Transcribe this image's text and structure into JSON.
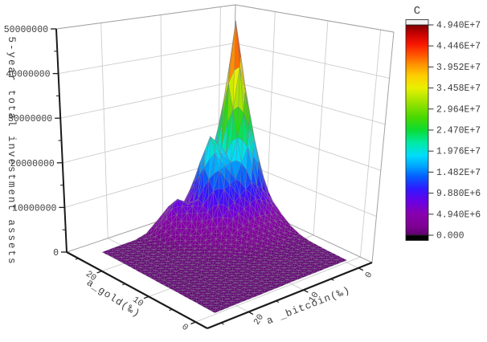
{
  "page": {
    "background": "#ffffff"
  },
  "chart_data": {
    "type": "surface3d",
    "title": "",
    "zlabel": "5-year total investment assets",
    "xlabel": "a_gold(‰)",
    "ylabel": "a _bitcoin(‰)",
    "z_axis": {
      "min": 0,
      "max": 50000000,
      "tick_values": [
        0,
        10000000,
        20000000,
        30000000,
        40000000,
        50000000
      ],
      "tick_labels": [
        "0",
        "10000000",
        "20000000",
        "30000000",
        "40000000",
        "50000000"
      ],
      "minor_values": [
        5000000,
        15000000,
        25000000,
        35000000,
        45000000
      ]
    },
    "gold_axis": {
      "range": [
        -2.5,
        27.5
      ],
      "tick_values": [
        0,
        10,
        20
      ],
      "tick_labels": [
        "0",
        "10",
        "20"
      ],
      "minor_values": [
        5,
        15,
        25
      ]
    },
    "bitcoin_axis": {
      "range": [
        -2.5,
        27.5
      ],
      "tick_values": [
        0,
        10,
        20
      ],
      "tick_labels": [
        "0",
        "10",
        "20"
      ],
      "minor_values": [
        5,
        15,
        25
      ]
    },
    "colorbar": {
      "title": "C",
      "tick_labels": [
        "4.940E+7",
        "4.446E+7",
        "3.952E+7",
        "3.458E+7",
        "2.964E+7",
        "2.470E+7",
        "1.976E+7",
        "1.482E+7",
        "9.880E+6",
        "4.940E+6",
        "0.000"
      ],
      "above_color": "#f2f2f2",
      "below_color": "#000000"
    },
    "colormap": [
      {
        "t": 0.0,
        "c": "#5c006b"
      },
      {
        "t": 0.04,
        "c": "#7d0092"
      },
      {
        "t": 0.1,
        "c": "#8800ae"
      },
      {
        "t": 0.16,
        "c": "#6a00e4"
      },
      {
        "t": 0.22,
        "c": "#3018ff"
      },
      {
        "t": 0.28,
        "c": "#0460ff"
      },
      {
        "t": 0.33,
        "c": "#00a8ff"
      },
      {
        "t": 0.38,
        "c": "#00ddfa"
      },
      {
        "t": 0.44,
        "c": "#00e9a4"
      },
      {
        "t": 0.5,
        "c": "#0cdc34"
      },
      {
        "t": 0.56,
        "c": "#48d800"
      },
      {
        "t": 0.63,
        "c": "#9ae300"
      },
      {
        "t": 0.7,
        "c": "#e9f000"
      },
      {
        "t": 0.76,
        "c": "#ffcc00"
      },
      {
        "t": 0.81,
        "c": "#ff9400"
      },
      {
        "t": 0.86,
        "c": "#ff5200"
      },
      {
        "t": 0.91,
        "c": "#f71500"
      },
      {
        "t": 0.96,
        "c": "#c30000"
      },
      {
        "t": 1.0,
        "c": "#7d0000"
      }
    ],
    "surface": {
      "z_unit": 1000000,
      "gold_values": [
        0,
        2,
        4,
        6,
        8,
        10,
        12,
        14,
        16,
        18,
        20,
        22,
        24
      ],
      "bitcoin_values": [
        0,
        2,
        4,
        6,
        8,
        10,
        12,
        14,
        16,
        18,
        20,
        22,
        24
      ],
      "peak": {
        "gold": 20,
        "bitcoin": 4,
        "value": 49400000
      },
      "z_values_millions": [
        [
          0.5,
          0.5,
          0.5,
          0.5,
          0.5,
          0.5,
          0.45,
          0.45,
          0.4,
          0.4,
          0.4,
          0.35,
          0.35
        ],
        [
          0.55,
          0.55,
          0.6,
          0.55,
          0.55,
          0.5,
          0.5,
          0.5,
          0.45,
          0.45,
          0.4,
          0.4,
          0.35
        ],
        [
          0.6,
          0.65,
          0.65,
          0.65,
          0.6,
          0.6,
          0.55,
          0.5,
          0.5,
          0.45,
          0.45,
          0.4,
          0.4
        ],
        [
          0.7,
          0.7,
          0.7,
          0.7,
          0.7,
          0.65,
          0.6,
          0.55,
          0.5,
          0.5,
          0.45,
          0.45,
          0.4
        ],
        [
          0.85,
          0.9,
          0.95,
          0.9,
          0.85,
          0.75,
          0.7,
          0.6,
          0.55,
          0.5,
          0.5,
          0.45,
          0.45
        ],
        [
          1.3,
          1.5,
          1.6,
          1.5,
          1.3,
          1.0,
          0.85,
          0.7,
          0.6,
          0.55,
          0.5,
          0.5,
          0.45
        ],
        [
          2.3,
          2.8,
          3.0,
          2.8,
          2.3,
          1.6,
          1.1,
          0.85,
          0.7,
          0.6,
          0.55,
          0.5,
          0.45
        ],
        [
          4.0,
          5.0,
          5.5,
          5.0,
          4.0,
          2.6,
          1.6,
          1.0,
          0.75,
          0.65,
          0.6,
          0.5,
          0.5
        ],
        [
          6.2,
          10,
          12.5,
          10,
          8,
          4.5,
          2.4,
          1.3,
          0.85,
          0.7,
          0.6,
          0.55,
          0.5
        ],
        [
          10,
          21,
          28,
          17,
          16,
          7,
          3.6,
          2.0,
          1.0,
          0.7,
          0.65,
          0.6,
          0.55
        ],
        [
          14,
          32,
          49.4,
          20,
          23,
          9,
          6.6,
          3.8,
          1.35,
          0.7,
          0.65,
          0.6,
          0.55
        ],
        [
          10,
          21,
          28,
          17,
          16,
          7,
          8.8,
          5.1,
          1.7,
          0.8,
          0.65,
          0.6,
          0.55
        ],
        [
          6.2,
          10,
          12.5,
          10,
          8,
          4.5,
          5.9,
          3.5,
          1.35,
          0.7,
          0.65,
          0.6,
          0.5
        ]
      ]
    }
  }
}
